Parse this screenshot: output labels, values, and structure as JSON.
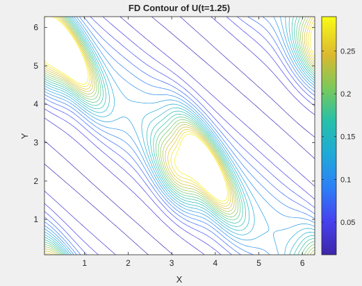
{
  "chart_data": {
    "type": "contour",
    "title": "FD Contour of U(t=1.25)",
    "xlabel": "X",
    "ylabel": "Y",
    "xlim": [
      0.08,
      6.283
    ],
    "ylim": [
      0.08,
      6.283
    ],
    "x_ticks": [
      1,
      2,
      3,
      4,
      5,
      6
    ],
    "y_ticks": [
      1,
      2,
      3,
      4,
      5,
      6
    ],
    "colorbar": {
      "clim": [
        0.012,
        0.29
      ],
      "ticks": [
        0.05,
        0.1,
        0.15,
        0.2,
        0.25
      ],
      "tick_labels": [
        "0.05",
        "0.1",
        "0.15",
        "0.2",
        "0.25"
      ],
      "colormap": "parula"
    },
    "field": {
      "description": "diagonal band of U from upper-left to lower-right with two peaks",
      "peaks": [
        {
          "x": 0.65,
          "y": 5.35,
          "value": 0.27
        },
        {
          "x": 3.82,
          "y": 2.35,
          "value": 0.27
        }
      ],
      "secondary_lobes": [
        {
          "x": 3.1,
          "y": 2.3,
          "value": 0.16
        },
        {
          "x": 0.15,
          "y": 5.3,
          "value": 0.14
        },
        {
          "x": 6.15,
          "y": 5.4,
          "value": 0.1
        }
      ]
    },
    "contour_levels": 20,
    "grid": false,
    "box": true
  }
}
